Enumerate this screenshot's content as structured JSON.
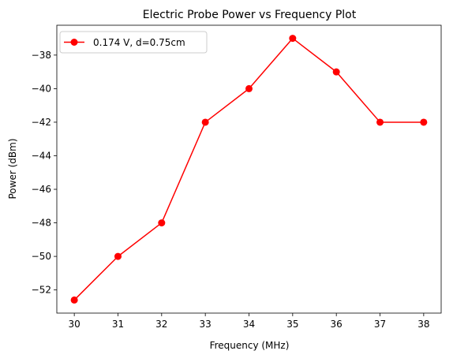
{
  "chart_data": {
    "type": "line",
    "title": "Electric Probe Power vs Frequency Plot",
    "xlabel": "Frequency (MHz)",
    "ylabel": "Power (dBm)",
    "xlim": [
      29.6,
      38.4
    ],
    "ylim": [
      -53.38,
      -36.22
    ],
    "x_ticks": [
      30,
      31,
      32,
      33,
      34,
      35,
      36,
      37,
      38
    ],
    "y_ticks": [
      -52,
      -50,
      -48,
      -46,
      -44,
      -42,
      -40,
      -38
    ],
    "x_tick_labels": [
      "30",
      "31",
      "32",
      "33",
      "34",
      "35",
      "36",
      "37",
      "38"
    ],
    "y_tick_labels": [
      "−52",
      "−50",
      "−48",
      "−46",
      "−44",
      "−42",
      "−40",
      "−38"
    ],
    "grid": false,
    "legend_position": "upper-left",
    "series": [
      {
        "name": "0.174 V, d=0.75cm",
        "color": "#ff0000",
        "marker": "circle",
        "x": [
          30,
          31,
          32,
          33,
          34,
          35,
          36,
          37,
          38
        ],
        "y": [
          -52.6,
          -50,
          -48,
          -42,
          -40,
          -37,
          -39,
          -42,
          -42
        ]
      }
    ]
  }
}
